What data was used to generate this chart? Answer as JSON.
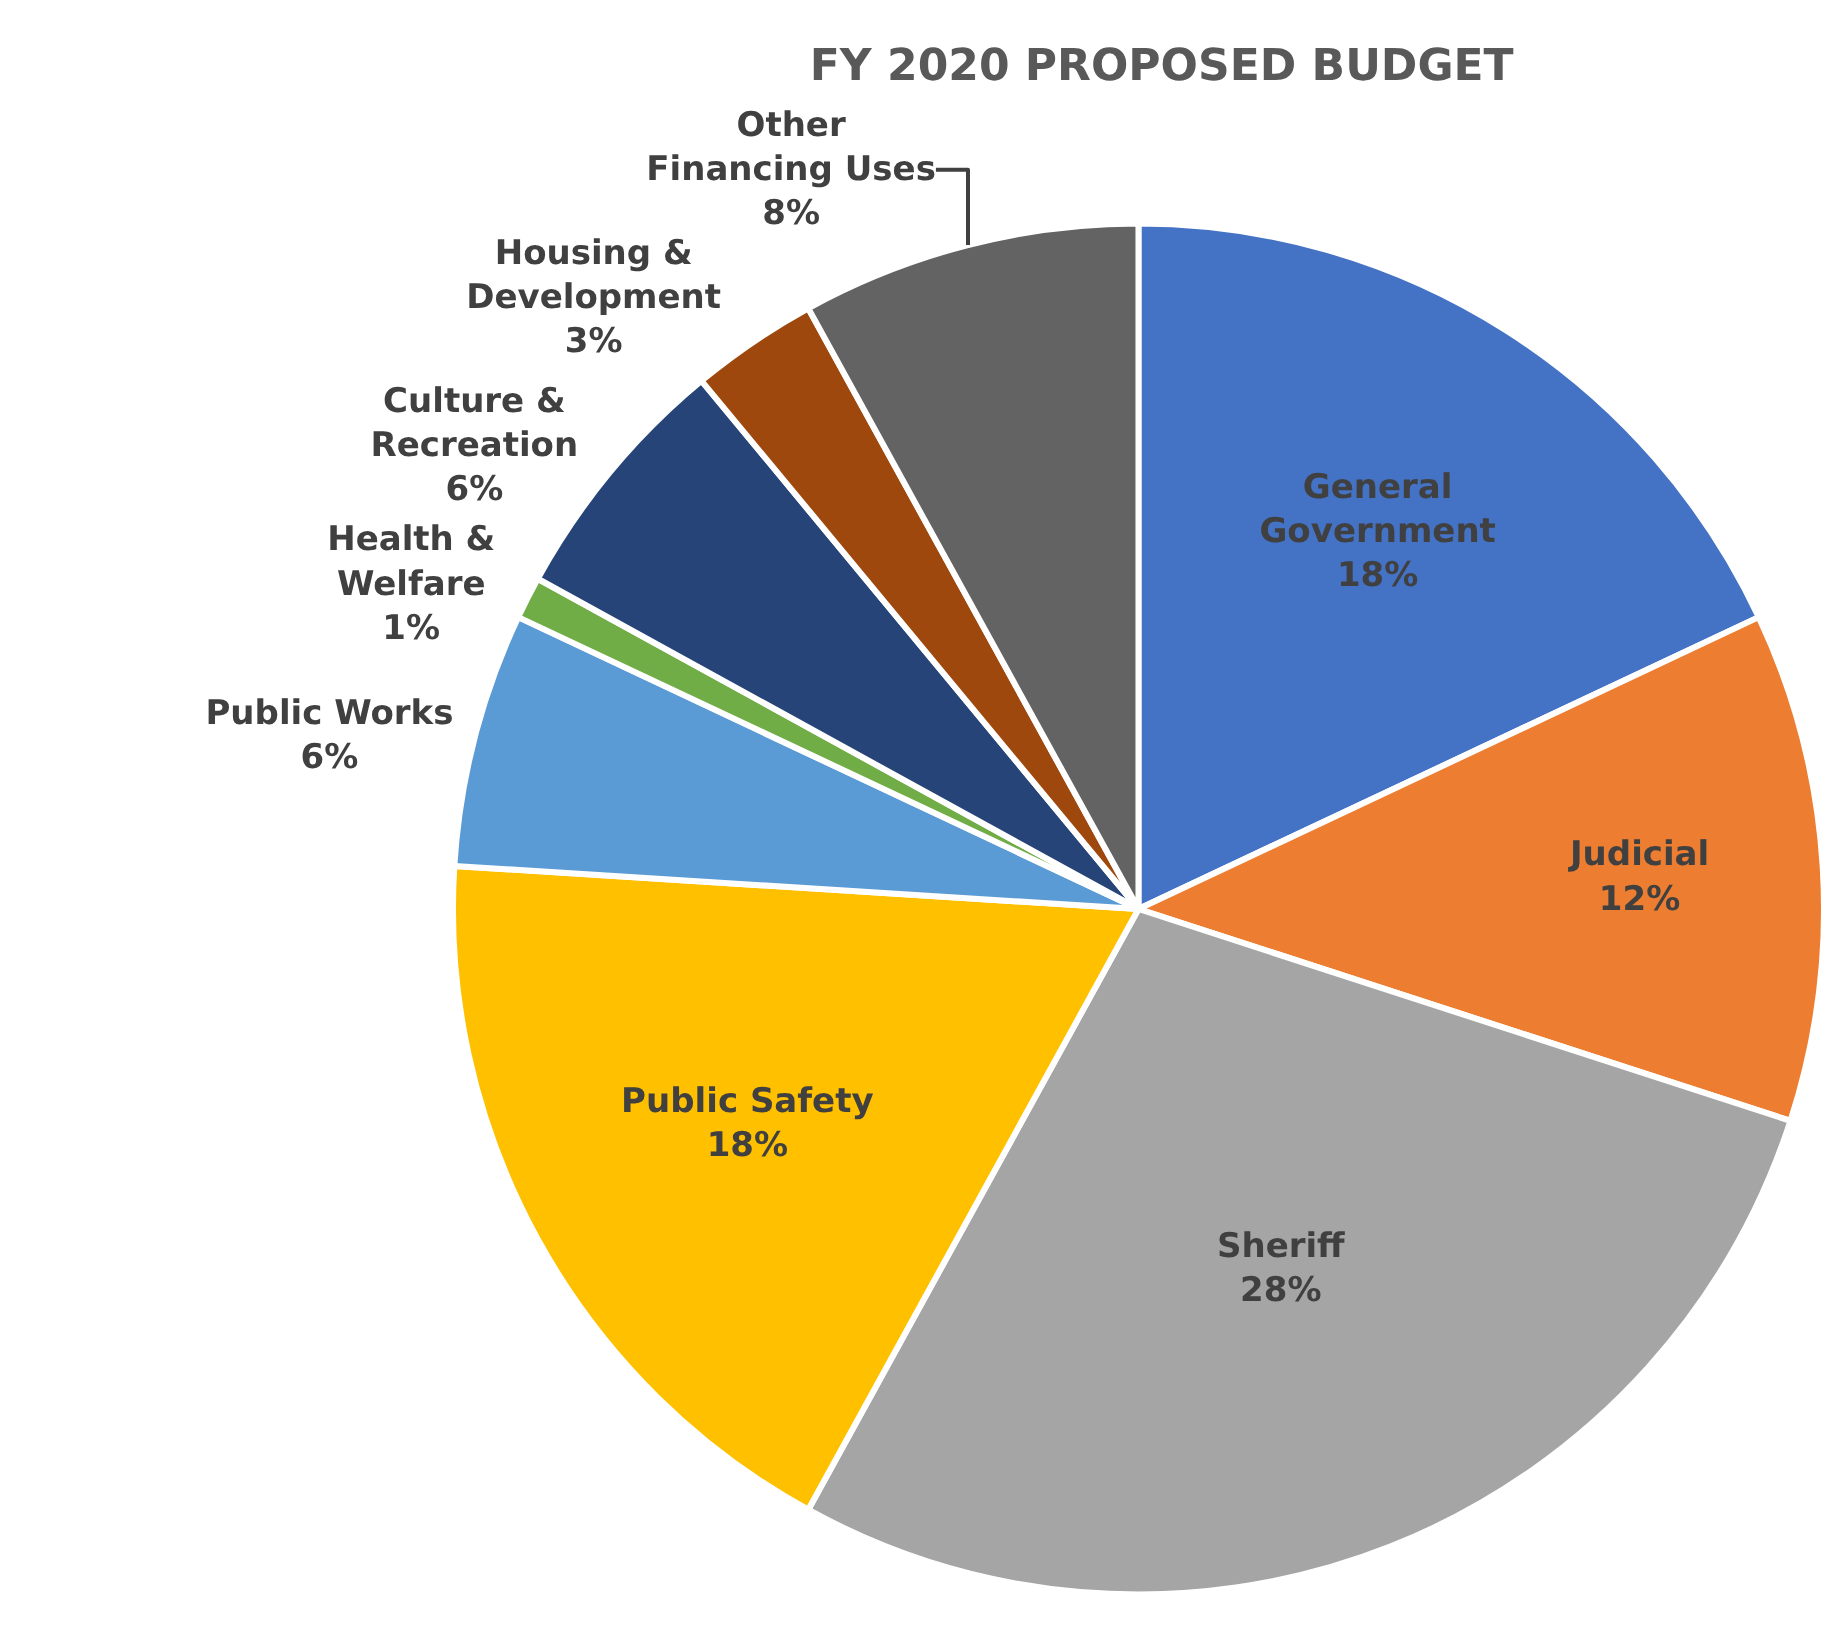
{
  "chart_data": {
    "type": "pie",
    "title": "FY 2020 PROPOSED BUDGET",
    "categories": [
      "General Government",
      "Judicial",
      "Sheriff",
      "Public Safety",
      "Public Works",
      "Health & Welfare",
      "Culture & Recreation",
      "Housing & Development",
      "Other Financing Uses"
    ],
    "values": [
      18,
      12,
      28,
      18,
      6,
      1,
      6,
      3,
      8
    ],
    "value_labels": [
      "18%",
      "12%",
      "28%",
      "18%",
      "6%",
      "1%",
      "6%",
      "3%",
      "8%"
    ],
    "colors": [
      "#4472c4",
      "#ed7d31",
      "#a5a5a5",
      "#ffc000",
      "#5b9bd5",
      "#70ad47",
      "#264478",
      "#9e480e",
      "#636363"
    ],
    "legend": false
  }
}
